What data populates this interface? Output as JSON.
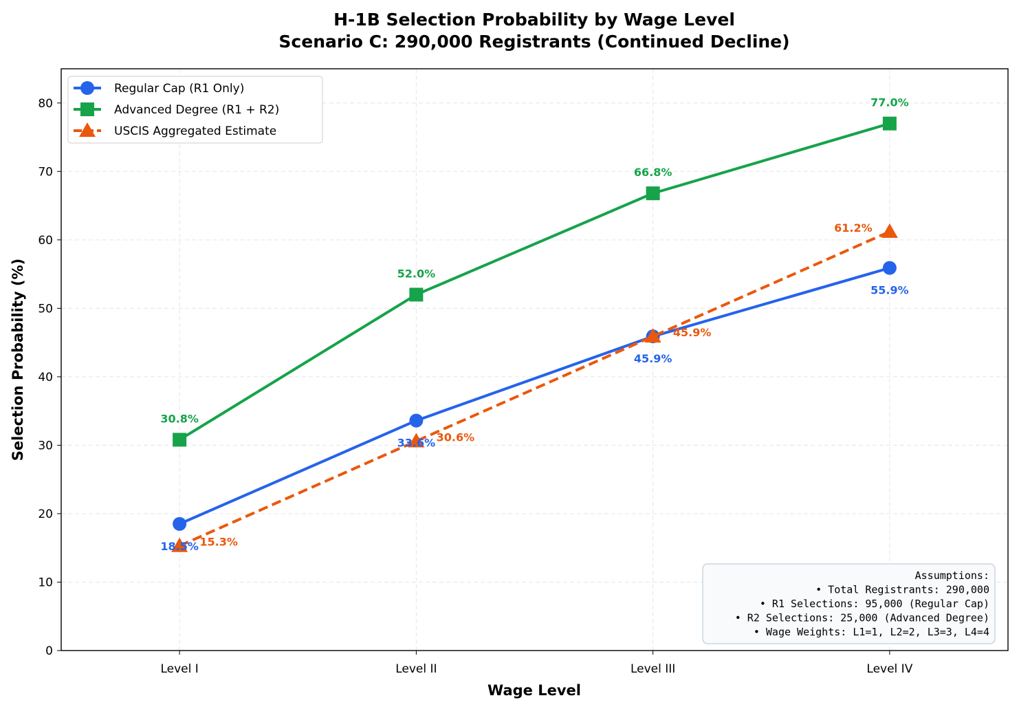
{
  "chart_data": {
    "type": "line",
    "title": "H-1B Selection Probability by Wage Level",
    "subtitle": "Scenario C: 290,000 Registrants (Continued Decline)",
    "xlabel": "Wage Level",
    "ylabel": "Selection Probability (%)",
    "categories": [
      "Level I",
      "Level II",
      "Level III",
      "Level IV"
    ],
    "ylim": [
      0,
      85
    ],
    "yticks": [
      0,
      10,
      20,
      30,
      40,
      50,
      60,
      70,
      80
    ],
    "grid": true,
    "legend_position": "top-left",
    "series": [
      {
        "name": "Regular Cap (R1 Only)",
        "values": [
          18.5,
          33.6,
          45.9,
          55.9
        ],
        "labels": [
          "18.5%",
          "33.6%",
          "45.9%",
          "55.9%"
        ],
        "color": "#2563eb",
        "marker": "circle",
        "line": "solid"
      },
      {
        "name": "Advanced Degree (R1 + R2)",
        "values": [
          30.8,
          52.0,
          66.8,
          77.0
        ],
        "labels": [
          "30.8%",
          "52.0%",
          "66.8%",
          "77.0%"
        ],
        "color": "#16a34a",
        "marker": "square",
        "line": "solid"
      },
      {
        "name": "USCIS Aggregated Estimate",
        "values": [
          15.3,
          30.6,
          45.9,
          61.2
        ],
        "labels": [
          "15.3%",
          "30.6%",
          "45.9%",
          "61.2%"
        ],
        "color": "#ea580c",
        "marker": "triangle",
        "line": "dashed"
      }
    ],
    "annotation": {
      "lines": [
        "Assumptions:",
        "• Total Registrants: 290,000",
        "• R1 Selections: 95,000 (Regular Cap)",
        "• R2 Selections: 25,000 (Advanced Degree)",
        "• Wage Weights: L1=1, L2=2, L3=3, L4=4"
      ]
    }
  }
}
